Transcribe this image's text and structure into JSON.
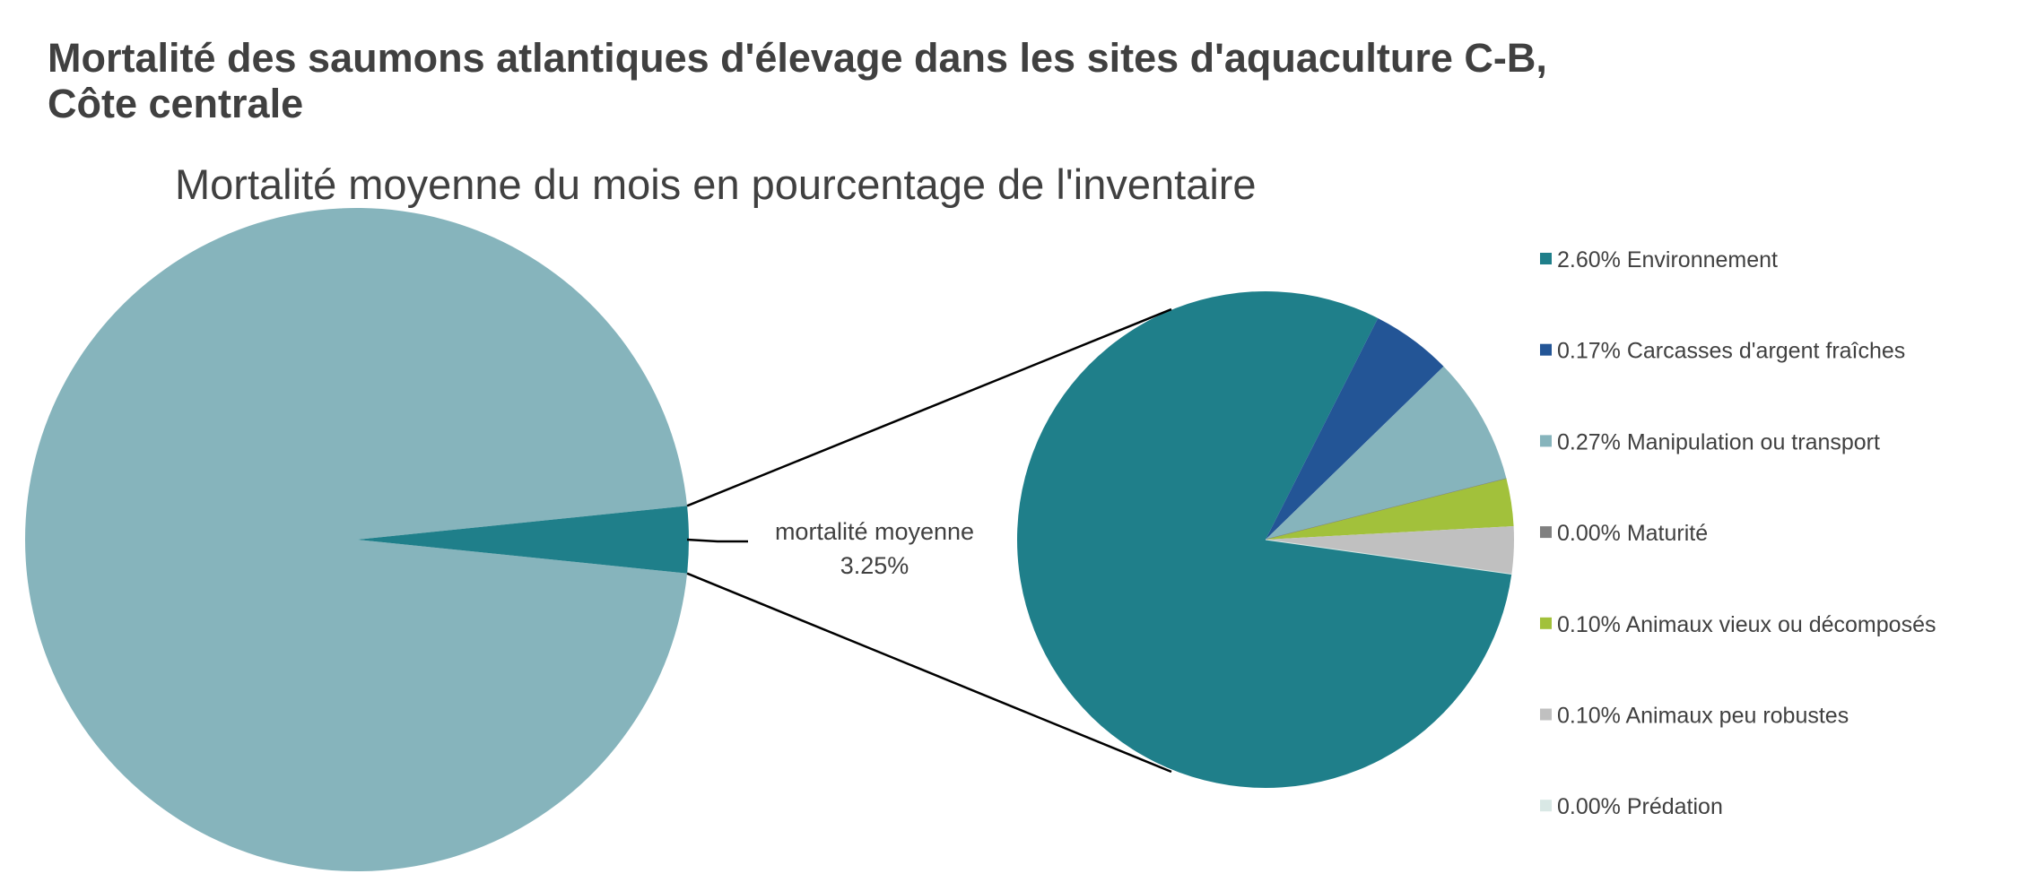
{
  "chart_data": {
    "type": "pie-of-pie",
    "title_line1": "Mortalité des saumons atlantiques d'élevage dans les sites d'aquaculture C-B,",
    "title_line2": "Côte centrale",
    "subtitle": "Mortalité moyenne du mois en pourcentage de l'inventaire",
    "main_pie": {
      "slices": [
        {
          "value": 96.75,
          "color": "#86b4bc"
        },
        {
          "value": 3.25,
          "color": "#1f7f8a"
        }
      ],
      "label_line1": "mortalité moyenne",
      "label_line2": "3.25%"
    },
    "secondary_pie": {
      "slices": [
        {
          "name": "Environnement",
          "value": 2.6,
          "label": "2.60%",
          "color": "#1f7f8a"
        },
        {
          "name": "Carcasses d'argent fraîches",
          "value": 0.17,
          "label": "0.17%",
          "color": "#235596"
        },
        {
          "name": "Manipulation ou transport",
          "value": 0.27,
          "label": "0.27%",
          "color": "#86b4bc"
        },
        {
          "name": "Maturité",
          "value": 0.0,
          "label": "0.00%",
          "color": "#808080"
        },
        {
          "name": "Animaux vieux ou décomposés",
          "value": 0.1,
          "label": "0.10%",
          "color": "#a2c13b"
        },
        {
          "name": "Animaux peu robustes",
          "value": 0.1,
          "label": "0.10%",
          "color": "#c0c0c0"
        },
        {
          "name": "Prédation",
          "value": 0.0,
          "label": "0.00%",
          "color": "#d9e8e5"
        }
      ]
    },
    "legend_position": "right"
  }
}
